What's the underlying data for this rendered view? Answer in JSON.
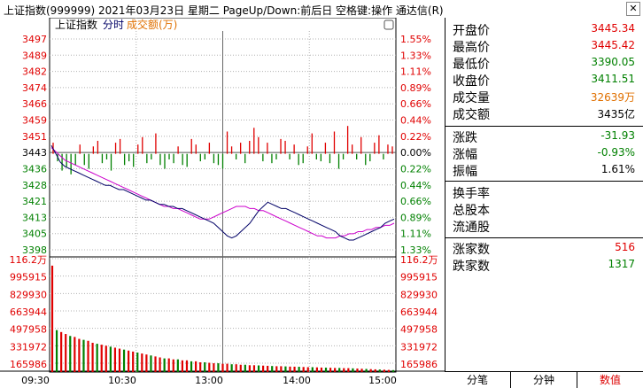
{
  "window": {
    "title": "上证指数(999999)  2021年03月23日 星期二 PageUp/Down:前后日 空格键:操作 通达信(R)",
    "close_glyph": "✕"
  },
  "chart_data": {
    "type": "line",
    "legend": {
      "name": "上证指数",
      "series1": "分时",
      "series2": "成交额(万)"
    },
    "price_axis_left": [
      "3497",
      "3489",
      "3482",
      "3474",
      "3466",
      "3459",
      "3451",
      "3443",
      "3436",
      "3428",
      "3421",
      "3413",
      "3405",
      "3398"
    ],
    "price_axis_right": [
      "1.55%",
      "1.33%",
      "1.11%",
      "0.89%",
      "0.66%",
      "0.44%",
      "0.22%",
      "0.00%",
      "0.22%",
      "0.44%",
      "0.66%",
      "0.89%",
      "1.11%",
      "1.33%"
    ],
    "price_range": [
      3394,
      3501
    ],
    "prev_close": 3443,
    "volume_axis_left": [
      "116.2万",
      "995915",
      "829930",
      "663944",
      "497958",
      "331972",
      "165986"
    ],
    "volume_axis_right": [
      "116.2万",
      "995915",
      "829930",
      "663944",
      "497958",
      "331972",
      "165986"
    ],
    "volume_max": 1162000,
    "time_labels": [
      "09:30",
      "10:30",
      "13:00",
      "14:00",
      "15:00"
    ],
    "price_series": [
      3447,
      3443,
      3439,
      3437,
      3436,
      3435,
      3434,
      3433,
      3432,
      3431,
      3430,
      3429,
      3428,
      3428,
      3427,
      3426,
      3426,
      3425,
      3424,
      3423,
      3422,
      3421,
      3421,
      3420,
      3419,
      3419,
      3418,
      3418,
      3417,
      3417,
      3416,
      3415,
      3414,
      3413,
      3412,
      3411,
      3410,
      3408,
      3406,
      3404,
      3403,
      3404,
      3406,
      3408,
      3410,
      3413,
      3416,
      3418,
      3420,
      3419,
      3418,
      3417,
      3417,
      3416,
      3415,
      3414,
      3413,
      3412,
      3411,
      3410,
      3409,
      3408,
      3407,
      3406,
      3404,
      3403,
      3402,
      3402,
      3403,
      3404,
      3405,
      3406,
      3407,
      3408,
      3410,
      3411,
      3412
    ],
    "avg_series": [
      3446,
      3444,
      3442,
      3440,
      3439,
      3438,
      3437,
      3436,
      3435,
      3434,
      3433,
      3432,
      3431,
      3430,
      3429,
      3428,
      3427,
      3426,
      3425,
      3424,
      3423,
      3422,
      3421,
      3420,
      3419,
      3418,
      3418,
      3417,
      3417,
      3416,
      3415,
      3414,
      3413,
      3412,
      3412,
      3412,
      3413,
      3414,
      3415,
      3416,
      3417,
      3418,
      3418,
      3418,
      3417,
      3417,
      3416,
      3416,
      3415,
      3414,
      3413,
      3412,
      3411,
      3410,
      3409,
      3408,
      3407,
      3406,
      3405,
      3404,
      3404,
      3403,
      3403,
      3403,
      3404,
      3404,
      3405,
      3405,
      3406,
      3406,
      3407,
      3407,
      3408,
      3408,
      3409,
      3409,
      3410
    ],
    "breadth_series": [
      6,
      -4,
      -9,
      -7,
      -11,
      -6,
      5,
      -6,
      -8,
      4,
      7,
      -5,
      -3,
      -9,
      6,
      8,
      -6,
      -4,
      -7,
      5,
      9,
      -5,
      -3,
      11,
      -6,
      -8,
      -3,
      -5,
      4,
      -6,
      -7,
      8,
      5,
      -4,
      -3,
      6,
      -5,
      -6,
      -8,
      12,
      4,
      -3,
      6,
      -5,
      7,
      14,
      9,
      -4,
      6,
      -5,
      -3,
      8,
      7,
      -3,
      5,
      -6,
      -5,
      4,
      11,
      -3,
      -4,
      6,
      -5,
      12,
      -8,
      -3,
      15,
      5,
      -3,
      9,
      -6,
      -4,
      6,
      10,
      -3,
      5,
      4
    ],
    "volume_series": [
      1090000,
      430000,
      410000,
      390000,
      370000,
      360000,
      340000,
      330000,
      320000,
      300000,
      290000,
      280000,
      270000,
      260000,
      250000,
      240000,
      230000,
      220000,
      210000,
      200000,
      190000,
      180000,
      170000,
      160000,
      150000,
      140000,
      140000,
      130000,
      130000,
      120000,
      120000,
      110000,
      110000,
      100000,
      100000,
      95000,
      90000,
      90000,
      85000,
      85000,
      80000,
      80000,
      75000,
      75000,
      70000,
      70000,
      68000,
      66000,
      64000,
      62000,
      60000,
      60000,
      58000,
      56000,
      55000,
      54000,
      52000,
      50000,
      50000,
      48000,
      46000,
      45000,
      44000,
      42000,
      42000,
      40000,
      40000,
      38000,
      36000,
      34000,
      32000,
      30000,
      28000,
      26000,
      24000,
      22000,
      20000
    ]
  },
  "panel": {
    "rows": [
      {
        "label": "开盘价",
        "value": "3445.34",
        "color": "#e00000"
      },
      {
        "label": "最高价",
        "value": "3445.42",
        "color": "#e00000"
      },
      {
        "label": "最低价",
        "value": "3390.05",
        "color": "#008000"
      },
      {
        "label": "收盘价",
        "value": "3411.51",
        "color": "#008000"
      },
      {
        "label": "成交量",
        "value": "32639万",
        "color": "#e07000"
      },
      {
        "label": "成交额",
        "value": "3435亿",
        "color": "#000000"
      },
      {
        "label": "涨跌",
        "value": "-31.93",
        "color": "#008000"
      },
      {
        "label": "涨幅",
        "value": "-0.93%",
        "color": "#008000"
      },
      {
        "label": "振幅",
        "value": "1.61%",
        "color": "#000000"
      },
      {
        "label": "换手率",
        "value": "",
        "color": "#000000"
      },
      {
        "label": "总股本",
        "value": "",
        "color": "#000000"
      },
      {
        "label": "流通股",
        "value": "",
        "color": "#000000"
      },
      {
        "label": "涨家数",
        "value": "516",
        "color": "#e00000"
      },
      {
        "label": "跌家数",
        "value": "1317",
        "color": "#008000"
      }
    ]
  },
  "tabs": [
    "分笔",
    "分钟",
    "数值"
  ],
  "colors": {
    "up": "#e00000",
    "down": "#008000",
    "price_line": "#000066",
    "avg_line": "#cc00cc",
    "grid": "#b0b0b0",
    "vol_line": "#888888"
  }
}
